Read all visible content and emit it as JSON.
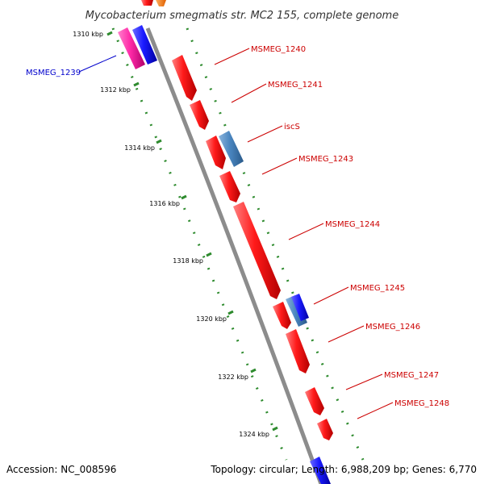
{
  "title": "Mycobacterium smegmatis str. MC2 155, complete genome",
  "footer": {
    "accession": "Accession: NC_008596",
    "summary": "Topology: circular; Length: 6,988,209 bp; Genes: 6,770"
  },
  "ticks": [
    "1310 kbp",
    "1312 kbp",
    "1314 kbp",
    "1316 kbp",
    "1318 kbp",
    "1320 kbp",
    "1322 kbp",
    "1324 kbp"
  ],
  "gene_labels": [
    "MSMEG_1239",
    "MSMEG_1240",
    "MSMEG_1241",
    "iscS",
    "MSMEG_1243",
    "MSMEG_1244",
    "MSMEG_1245",
    "MSMEG_1246",
    "MSMEG_1247",
    "MSMEG_1248"
  ],
  "colors": {
    "backbone": "#8c8c8c",
    "gene_red": "#ff1a1a",
    "gene_blue": "#1a1aff",
    "gene_steel": "#4a86c0",
    "gene_magenta": "#ff2aa8",
    "label_red": "#cc0000",
    "label_blue": "#0000cc",
    "ruler_green": "#2e8b2e"
  }
}
